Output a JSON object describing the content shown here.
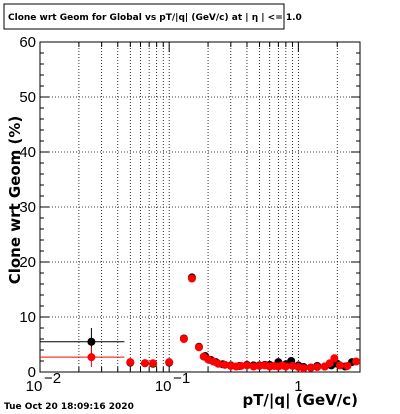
{
  "chart_data": {
    "type": "scatter",
    "title": "Clone wrt Geom for Global vs pT/|q| (GeV/c) at | η | <= 1.0",
    "xlabel": "pT/|q| (GeV/c)",
    "ylabel": "Clone wrt Geom (%)",
    "xscale": "log",
    "xlim": [
      0.01,
      3.0
    ],
    "ylim": [
      0,
      60
    ],
    "grid": true,
    "x_ticks": [
      {
        "value": 0.01,
        "label": "10",
        "exp": "−2"
      },
      {
        "value": 0.1,
        "label": "10",
        "exp": "−1"
      },
      {
        "value": 1,
        "label": "1",
        "exp": ""
      }
    ],
    "y_ticks": [
      {
        "value": 0,
        "label": "0"
      },
      {
        "value": 10,
        "label": "10"
      },
      {
        "value": 20,
        "label": "20"
      },
      {
        "value": 30,
        "label": "30"
      },
      {
        "value": 40,
        "label": "40"
      },
      {
        "value": 50,
        "label": "50"
      },
      {
        "value": 60,
        "label": "60"
      }
    ],
    "series": [
      {
        "color": "#000000",
        "points": [
          {
            "x": 0.025,
            "y": 5.5,
            "xerr": [
              0.01,
              0.045
            ],
            "yerr": 2.5
          },
          {
            "x": 0.05,
            "y": 1.7
          },
          {
            "x": 0.065,
            "y": 1.6
          },
          {
            "x": 0.075,
            "y": 1.5
          },
          {
            "x": 0.1,
            "y": 1.7
          },
          {
            "x": 0.13,
            "y": 6.1
          },
          {
            "x": 0.15,
            "y": 17.2
          },
          {
            "x": 0.17,
            "y": 4.6
          },
          {
            "x": 0.19,
            "y": 2.9
          },
          {
            "x": 0.21,
            "y": 2.2
          },
          {
            "x": 0.23,
            "y": 1.8
          },
          {
            "x": 0.26,
            "y": 1.4
          },
          {
            "x": 0.3,
            "y": 1.2
          },
          {
            "x": 0.35,
            "y": 1.1
          },
          {
            "x": 0.4,
            "y": 1.3
          },
          {
            "x": 0.45,
            "y": 1.2
          },
          {
            "x": 0.5,
            "y": 1.2
          },
          {
            "x": 0.55,
            "y": 1.3
          },
          {
            "x": 0.6,
            "y": 1.3
          },
          {
            "x": 0.7,
            "y": 1.8
          },
          {
            "x": 0.8,
            "y": 1.4
          },
          {
            "x": 0.88,
            "y": 2.0
          },
          {
            "x": 1.0,
            "y": 1.2
          },
          {
            "x": 1.1,
            "y": 0.9
          },
          {
            "x": 1.25,
            "y": 0.8
          },
          {
            "x": 1.4,
            "y": 1.1
          },
          {
            "x": 1.6,
            "y": 1.0
          },
          {
            "x": 1.8,
            "y": 1.2
          },
          {
            "x": 2.0,
            "y": 1.5
          },
          {
            "x": 2.3,
            "y": 1.0
          },
          {
            "x": 2.6,
            "y": 1.8
          }
        ]
      },
      {
        "color": "#ff0000",
        "points": [
          {
            "x": 0.025,
            "y": 2.7,
            "xerr": [
              0.01,
              0.045
            ],
            "yerr": 1.8
          },
          {
            "x": 0.05,
            "y": 1.8
          },
          {
            "x": 0.065,
            "y": 1.6
          },
          {
            "x": 0.075,
            "y": 1.6
          },
          {
            "x": 0.1,
            "y": 1.8
          },
          {
            "x": 0.13,
            "y": 6.0
          },
          {
            "x": 0.15,
            "y": 17.0
          },
          {
            "x": 0.17,
            "y": 4.5
          },
          {
            "x": 0.185,
            "y": 2.8
          },
          {
            "x": 0.2,
            "y": 2.3
          },
          {
            "x": 0.22,
            "y": 1.9
          },
          {
            "x": 0.24,
            "y": 1.5
          },
          {
            "x": 0.27,
            "y": 1.3
          },
          {
            "x": 0.3,
            "y": 1.1
          },
          {
            "x": 0.33,
            "y": 1.0
          },
          {
            "x": 0.36,
            "y": 1.1
          },
          {
            "x": 0.4,
            "y": 1.2
          },
          {
            "x": 0.45,
            "y": 1.0
          },
          {
            "x": 0.5,
            "y": 1.1
          },
          {
            "x": 0.55,
            "y": 1.2
          },
          {
            "x": 0.6,
            "y": 1.0
          },
          {
            "x": 0.65,
            "y": 1.1
          },
          {
            "x": 0.7,
            "y": 1.0
          },
          {
            "x": 0.75,
            "y": 1.2
          },
          {
            "x": 0.8,
            "y": 1.0
          },
          {
            "x": 0.9,
            "y": 1.1
          },
          {
            "x": 1.0,
            "y": 0.9
          },
          {
            "x": 1.1,
            "y": 0.7
          },
          {
            "x": 1.25,
            "y": 0.8
          },
          {
            "x": 1.4,
            "y": 0.9
          },
          {
            "x": 1.6,
            "y": 1.0
          },
          {
            "x": 1.75,
            "y": 1.6
          },
          {
            "x": 1.9,
            "y": 2.5
          },
          {
            "x": 2.1,
            "y": 1.2
          },
          {
            "x": 2.4,
            "y": 1.1
          },
          {
            "x": 2.8,
            "y": 1.9
          }
        ]
      }
    ]
  },
  "footer": {
    "timestamp": "Tue Oct 20 18:09:16 2020"
  }
}
